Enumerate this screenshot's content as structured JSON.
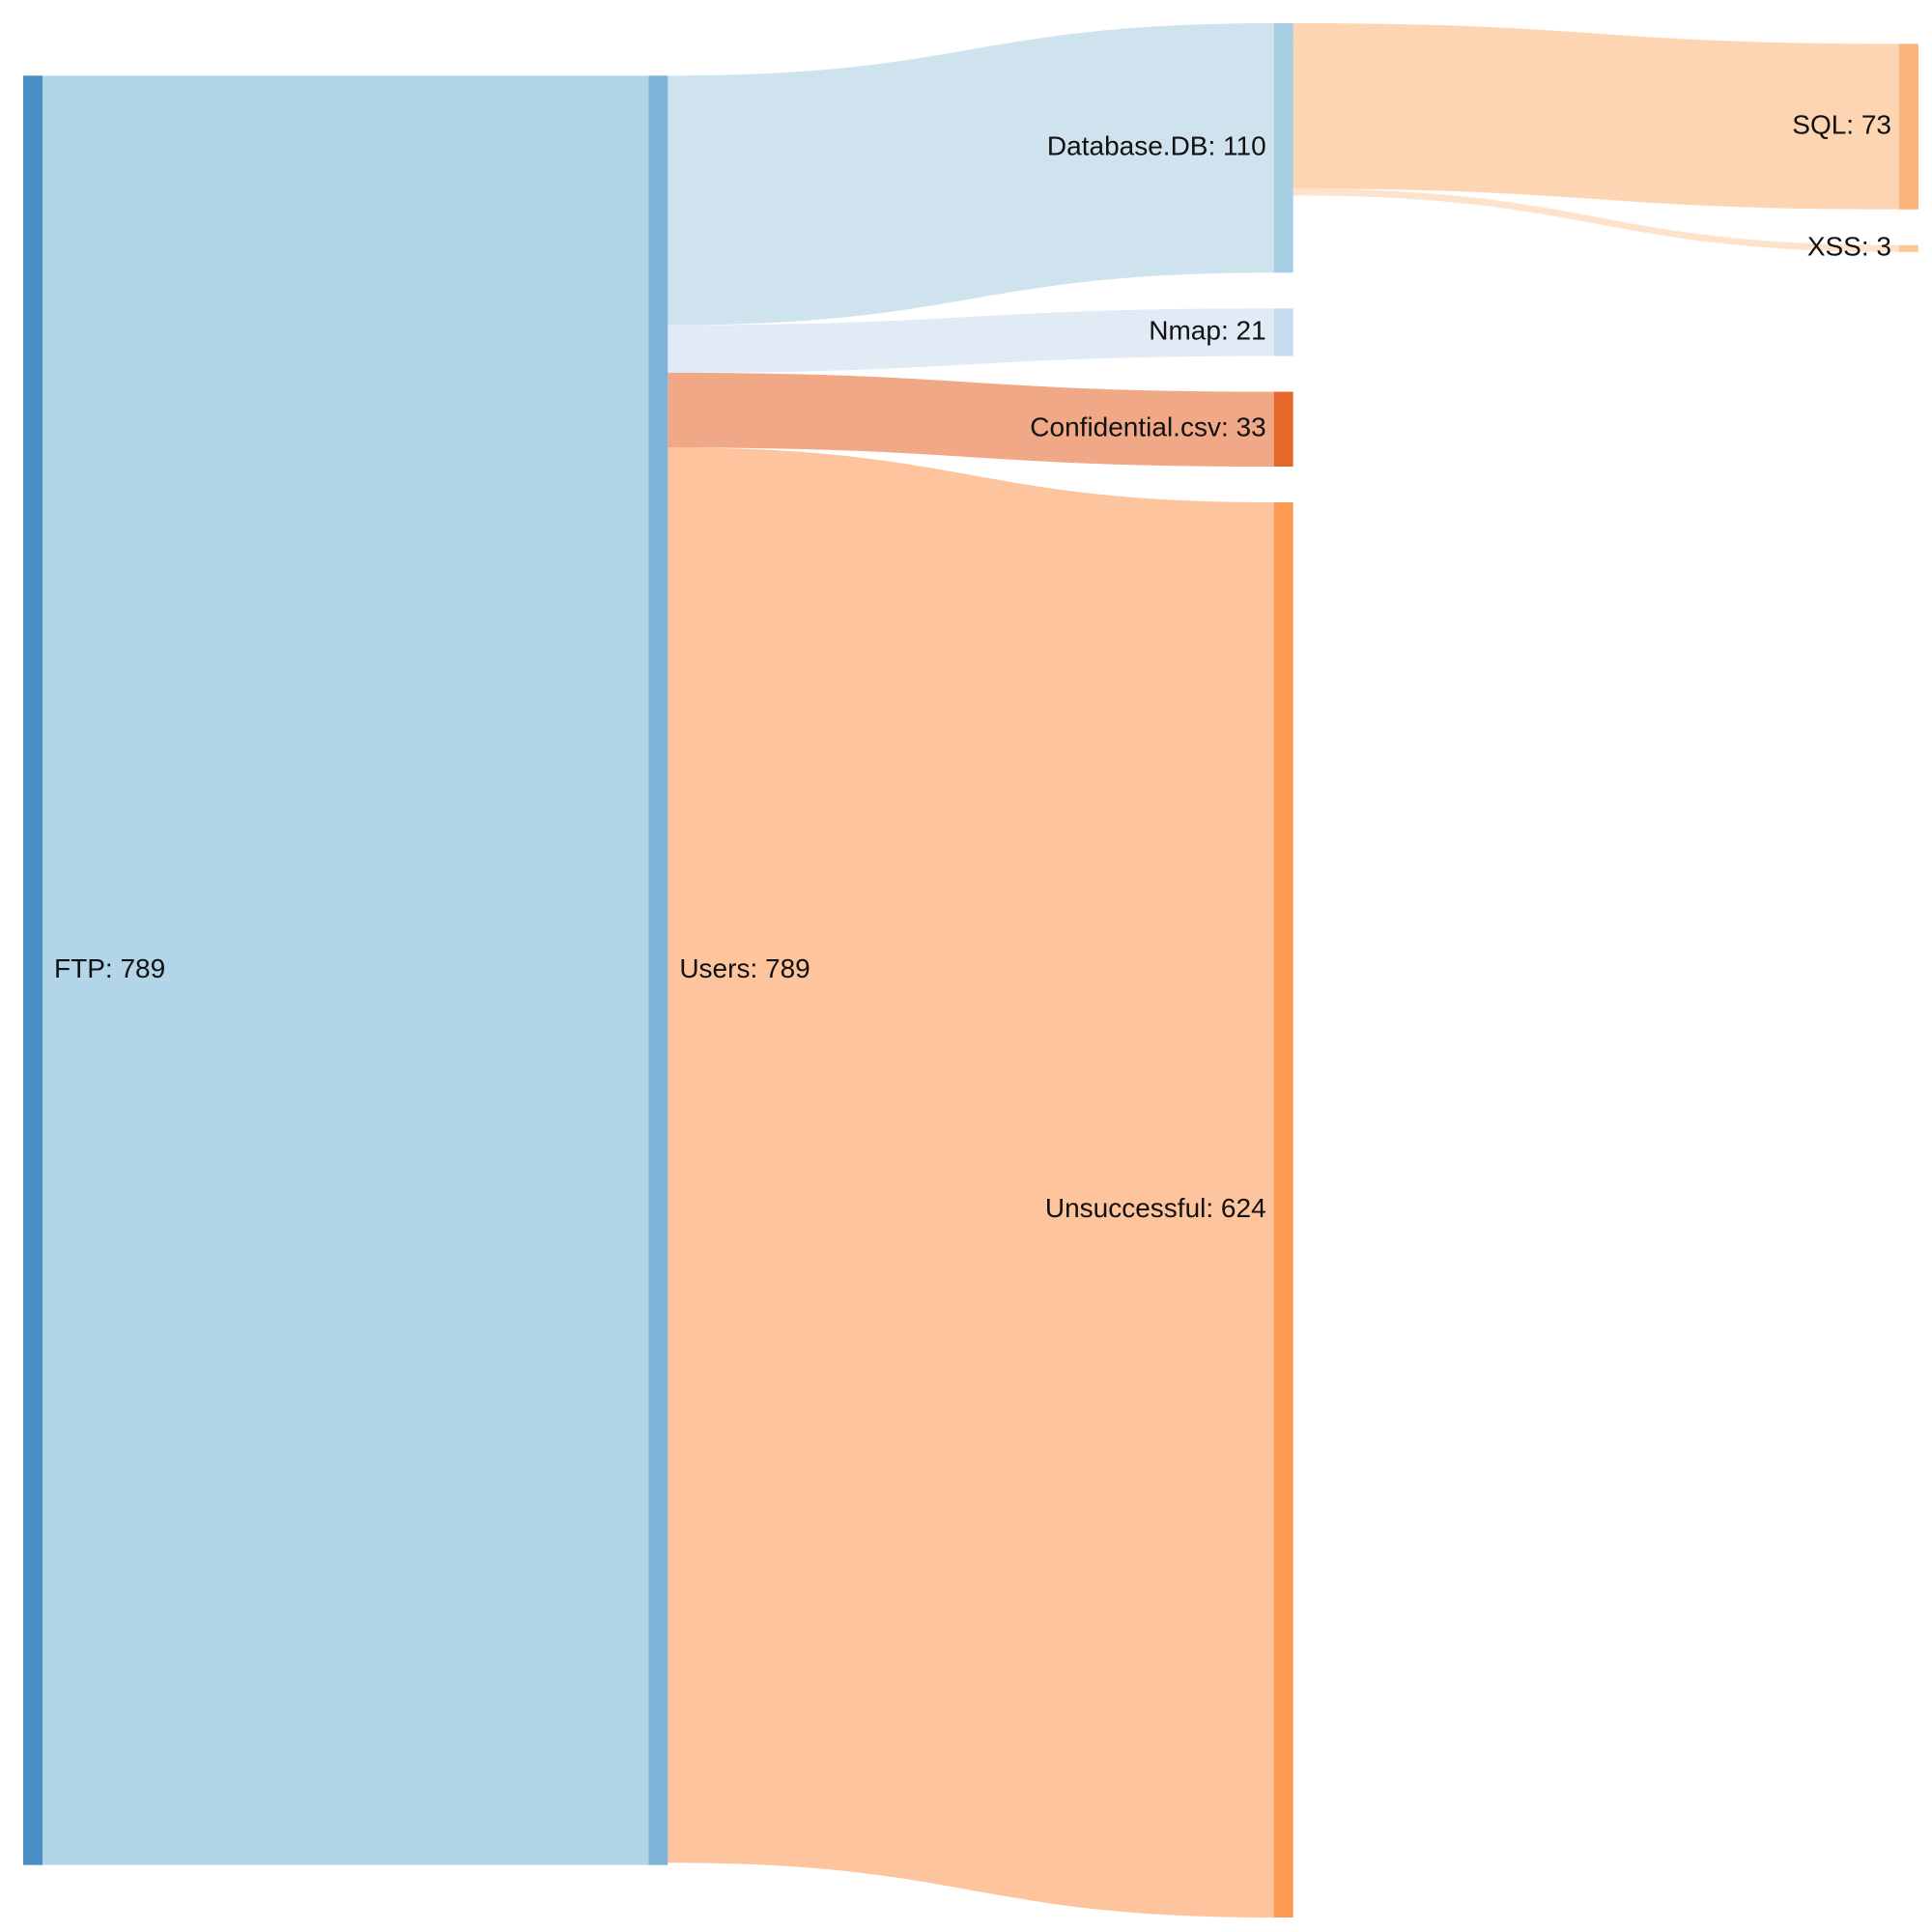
{
  "chart_data": {
    "type": "sankey",
    "nodes": [
      {
        "label": "FTP: 789",
        "value": 789,
        "color": "#4a8fc4"
      },
      {
        "label": "Users: 789",
        "value": 789,
        "color": "#7fb4da"
      },
      {
        "label": "Database.DB: 110",
        "value": 110,
        "color": "#a6cde2"
      },
      {
        "label": "Nmap: 21",
        "value": 21,
        "color": "#c6dbef"
      },
      {
        "label": "Confidential.csv: 33",
        "value": 33,
        "color": "#e6672a"
      },
      {
        "label": "Unsuccessful: 624",
        "value": 624,
        "color": "#fd9a54"
      },
      {
        "label": "SQL: 73",
        "value": 73,
        "color": "#fdb47c"
      },
      {
        "label": "XSS: 3",
        "value": 3,
        "color": "#fdc897"
      }
    ],
    "links": [
      {
        "source": 0,
        "target": 1,
        "value": 789,
        "color": "#b3d5e8"
      },
      {
        "source": 1,
        "target": 2,
        "value": 110,
        "color": "#cfe3ef"
      },
      {
        "source": 1,
        "target": 3,
        "value": 21,
        "color": "#e0ebf5"
      },
      {
        "source": 1,
        "target": 4,
        "value": 33,
        "color": "#f1a886"
      },
      {
        "source": 1,
        "target": 5,
        "value": 624,
        "color": "#fdc49d"
      },
      {
        "source": 2,
        "target": 6,
        "value": 73,
        "color": "#fdd5b3"
      },
      {
        "source": 2,
        "target": 7,
        "value": 3,
        "color": "#fde3cc"
      }
    ]
  }
}
